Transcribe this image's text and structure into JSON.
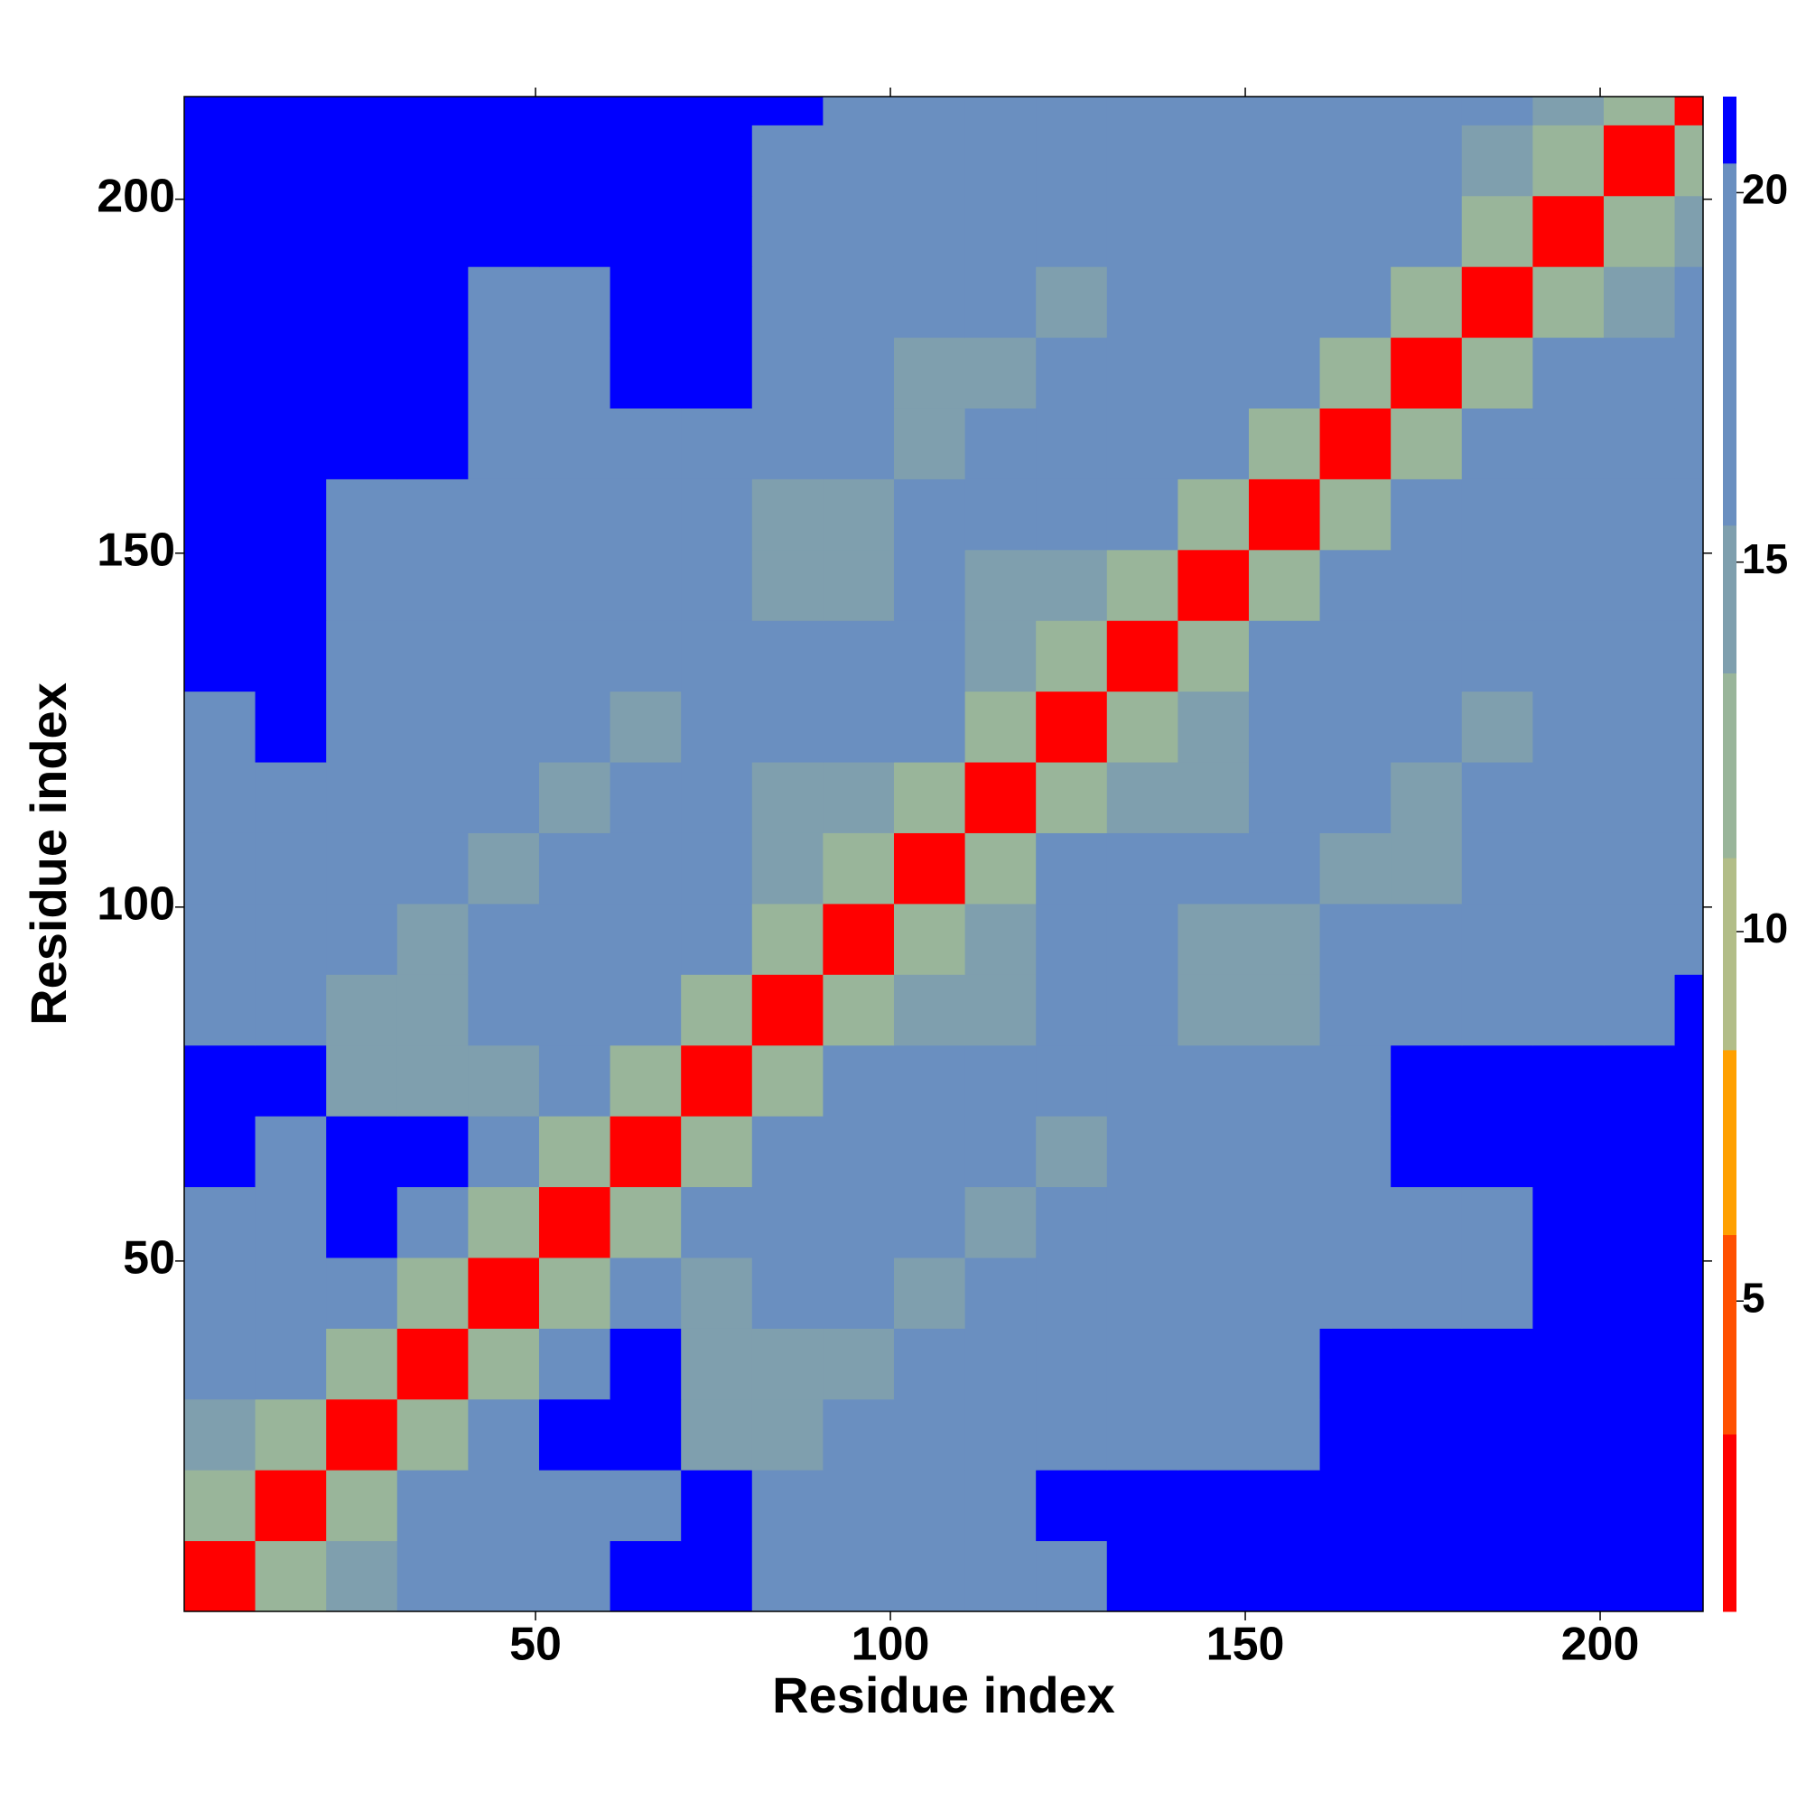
{
  "chart_data": {
    "type": "heatmap",
    "xlabel": "Residue index",
    "ylabel": "Residue index",
    "xbins": [
      0.5,
      10.5,
      20.5,
      30.5,
      40.5,
      50.5,
      60.5,
      70.5,
      80.5,
      90.5,
      100.5,
      110.5,
      120.5,
      130.5,
      140.5,
      150.5,
      160.5,
      170.5,
      180.5,
      190.5,
      200.5,
      210.5,
      214.5
    ],
    "ybins": [
      0.5,
      10.5,
      20.5,
      30.5,
      40.5,
      50.5,
      60.5,
      70.5,
      80.5,
      90.5,
      100.5,
      110.5,
      120.5,
      130.5,
      140.5,
      150.5,
      160.5,
      170.5,
      180.5,
      190.5,
      200.5,
      210.5,
      214.5
    ],
    "values": [
      [
        3,
        12,
        15,
        16,
        16,
        17,
        20.5,
        21,
        19.5,
        19.5,
        19.5,
        19.5,
        20,
        21,
        20.5,
        20.5,
        21,
        21,
        21,
        21,
        21,
        21
      ],
      [
        12,
        3,
        12,
        16,
        16,
        16,
        20,
        21,
        19.5,
        19.5,
        19.5,
        20,
        20.5,
        21,
        21,
        21,
        21,
        21,
        21,
        21,
        21,
        21
      ],
      [
        15,
        12,
        3,
        12,
        18,
        21,
        21,
        15,
        15,
        16,
        17,
        18,
        19,
        19,
        19,
        19,
        21,
        21,
        21,
        21,
        21,
        21
      ],
      [
        16,
        16,
        12,
        3,
        12,
        18,
        21,
        15,
        15,
        14,
        17,
        19,
        20,
        18,
        19,
        19.5,
        21,
        21,
        21,
        21,
        21,
        21
      ],
      [
        16,
        16,
        18,
        12,
        3,
        12,
        18,
        15,
        16,
        16,
        15,
        17,
        18,
        19,
        16,
        16,
        17,
        19.5,
        19.5,
        20.5,
        21,
        21
      ],
      [
        17,
        16,
        21,
        18,
        12,
        3,
        12,
        16,
        16,
        17,
        16,
        15,
        17,
        18,
        16,
        16,
        17,
        19.5,
        19.5,
        20.5,
        21,
        21
      ],
      [
        20.5,
        20,
        21,
        21,
        18,
        12,
        3,
        12,
        17,
        17,
        18,
        16,
        15,
        17,
        16,
        17,
        19,
        21,
        21,
        21,
        21,
        21
      ],
      [
        21,
        21,
        15,
        15,
        15,
        16,
        12,
        3,
        12,
        18,
        19,
        17,
        16,
        16,
        17,
        19,
        20,
        21,
        21,
        21,
        21,
        21
      ],
      [
        19.5,
        19.5,
        15,
        15,
        16,
        16,
        17,
        12,
        3,
        12,
        15,
        15,
        16,
        17,
        15,
        15,
        16,
        17,
        17,
        19,
        20,
        21
      ],
      [
        19.5,
        19.5,
        16,
        14,
        16,
        17,
        17,
        18,
        12,
        3,
        12,
        15,
        17,
        18,
        15,
        15,
        17,
        16,
        18,
        18,
        18,
        19
      ],
      [
        19.5,
        19.5,
        17,
        17,
        15,
        16,
        18,
        19,
        15,
        12,
        3,
        12,
        18,
        19,
        16,
        16,
        15,
        15,
        16,
        18,
        18,
        18
      ],
      [
        19.5,
        20,
        18,
        19,
        17,
        15,
        16,
        17,
        15,
        15,
        12,
        3,
        12,
        15,
        15,
        17,
        17,
        15,
        16,
        17,
        19.5,
        19.5
      ],
      [
        20,
        20.5,
        19,
        20,
        18,
        17,
        15,
        16,
        16,
        17,
        18,
        12,
        3,
        12,
        15,
        16,
        18,
        16,
        15,
        16,
        19.5,
        20
      ],
      [
        21,
        21,
        19,
        18,
        19,
        18,
        17,
        16,
        17,
        18,
        19,
        15,
        12,
        3,
        12,
        17,
        20,
        17,
        17,
        17,
        17,
        18
      ],
      [
        20.5,
        21,
        19,
        19,
        16,
        16,
        16,
        17,
        15,
        15,
        16,
        15,
        15,
        12,
        3,
        12,
        18,
        17,
        16,
        17,
        17,
        17
      ],
      [
        20.5,
        21,
        19,
        19.5,
        16,
        16,
        17,
        19,
        15,
        15,
        16,
        17,
        16,
        17,
        12,
        3,
        12,
        17,
        17,
        16,
        16,
        16
      ],
      [
        21,
        21,
        21,
        21,
        17,
        17,
        19,
        20,
        16,
        17,
        15,
        17,
        18,
        20,
        18,
        12,
        3,
        12,
        16,
        16,
        16,
        17
      ],
      [
        21,
        21,
        21,
        21,
        19.5,
        19.5,
        21,
        21,
        17,
        16,
        15,
        15,
        16,
        17,
        17,
        17,
        12,
        3,
        12,
        16,
        17,
        18
      ],
      [
        21,
        21,
        21,
        21,
        19.5,
        19.5,
        21,
        21,
        17,
        18,
        16,
        16,
        15,
        17,
        16,
        17,
        16,
        12,
        3,
        12,
        15,
        16
      ],
      [
        21,
        21,
        21,
        21,
        20.5,
        20.5,
        21,
        21,
        19,
        18,
        18,
        17,
        16,
        17,
        17,
        16,
        16,
        16,
        12,
        3,
        12,
        14
      ],
      [
        21,
        21,
        21,
        21,
        21,
        21,
        21,
        21,
        20,
        18,
        18,
        19.5,
        19.5,
        17,
        17,
        16,
        16,
        17,
        15,
        12,
        3,
        12
      ],
      [
        21,
        21,
        21,
        21,
        21,
        21,
        21,
        21,
        21,
        19,
        18,
        19.5,
        20,
        18,
        17,
        16,
        17,
        18,
        16,
        14,
        12,
        3
      ]
    ],
    "xlim": [
      0.5,
      214.5
    ],
    "ylim": [
      0.5,
      214.5
    ],
    "xticks": [
      50,
      100,
      150,
      200
    ],
    "yticks": [
      50,
      100,
      150,
      200
    ],
    "colorbar": {
      "bounds": [
        0.8,
        3.2,
        5.9,
        8.4,
        11,
        13.5,
        15.5,
        20.4,
        21.3
      ],
      "colors": [
        "#ff0000",
        "#ff5000",
        "#ffa000",
        "#b2bd88",
        "#99b59a",
        "#7f9fae",
        "#6a8fc0",
        "#0000ff"
      ],
      "ticks": [
        5,
        10,
        15,
        20
      ]
    }
  }
}
